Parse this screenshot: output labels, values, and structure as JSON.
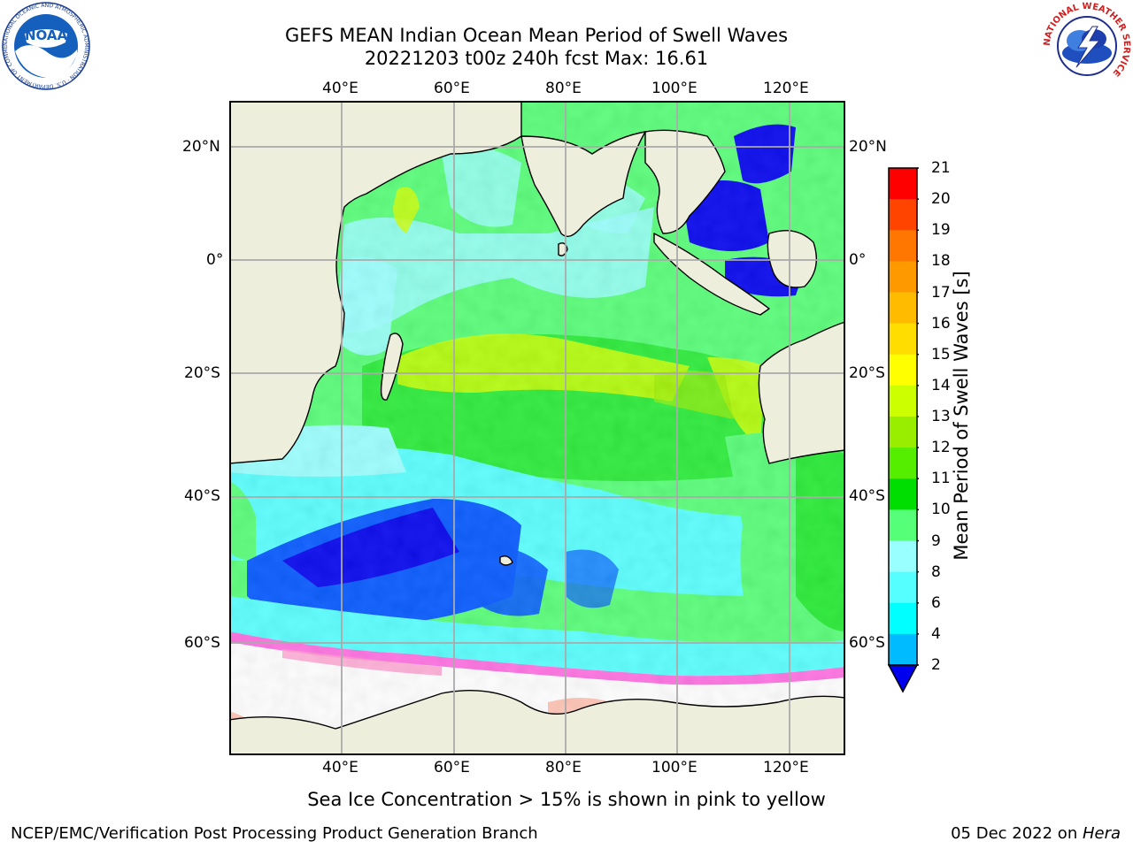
{
  "header": {
    "title_line1": "GEFS MEAN Indian Ocean Mean Period of Swell Waves",
    "title_line2": "20221203 t00z 240h fcst   Max: 16.61"
  },
  "logos": {
    "left": {
      "text": "NOAA",
      "ring_text": "NATIONAL OCEANIC AND ATMOSPHERIC ADMINISTRATION · U.S. DEPARTMENT OF COMMERCE"
    },
    "right": {
      "ring_text": "NATIONAL WEATHER SERVICE"
    }
  },
  "map": {
    "lon_labels": [
      "40°E",
      "60°E",
      "80°E",
      "100°E",
      "120°E"
    ],
    "lat_labels_left": [
      "20°N",
      "0°",
      "20°S",
      "40°S",
      "60°S"
    ],
    "lat_labels_right": [
      "20°N",
      "0°",
      "20°S",
      "40°S",
      "60°S"
    ],
    "colors": {
      "land": "#eeeedd",
      "gridline": "#aaaaaa"
    }
  },
  "colorbar": {
    "label": "Mean Period of Swell Waves [s]",
    "ticks": [
      "2",
      "4",
      "6",
      "8",
      "9",
      "10",
      "11",
      "12",
      "13",
      "14",
      "15",
      "16",
      "17",
      "18",
      "19",
      "20",
      "21"
    ],
    "colors": [
      "#0055ff",
      "#00bbff",
      "#00ffff",
      "#55ffff",
      "#99ffff",
      "#55ff77",
      "#00dd00",
      "#55ee00",
      "#99ee00",
      "#ccff00",
      "#ffff00",
      "#ffdd00",
      "#ffbb00",
      "#ff9900",
      "#ff7700",
      "#ff4400",
      "#ff0000"
    ],
    "extend_color": "#0000ee"
  },
  "notes": {
    "sea_ice": "Sea Ice Concentration > 15% is shown in pink to yellow"
  },
  "footer": {
    "left": "NCEP/EMC/Verification Post Processing Product Generation Branch",
    "right_date": "05 Dec 2022 on ",
    "right_host": "Hera"
  }
}
